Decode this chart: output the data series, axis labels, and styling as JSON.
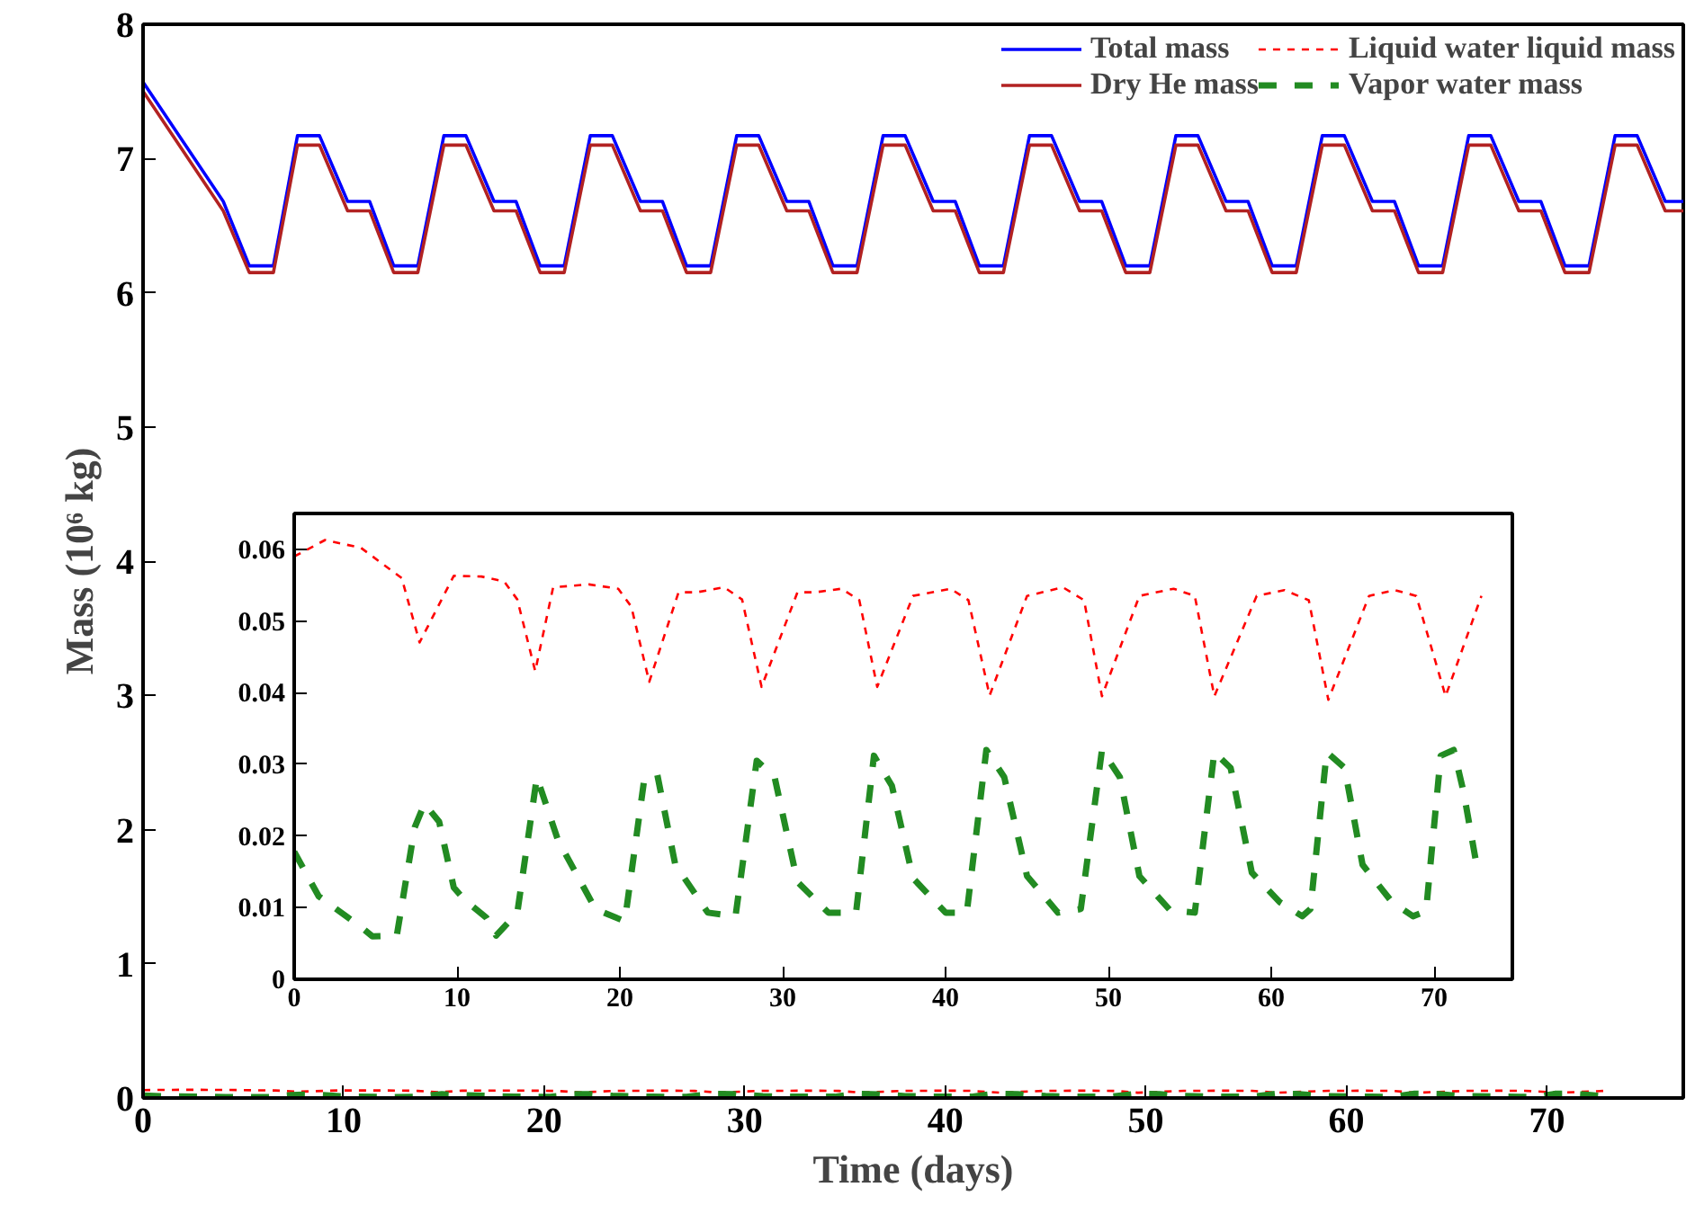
{
  "chart_data": [
    {
      "type": "line",
      "xlabel": "Time (days)",
      "ylabel": "Mass (10⁶ kg)",
      "xlim": [
        0,
        76.8
      ],
      "ylim": [
        0,
        8
      ],
      "xticks": [
        0,
        10,
        20,
        30,
        40,
        50,
        60,
        70
      ],
      "yticks": [
        0,
        1,
        2,
        3,
        4,
        5,
        6,
        7,
        8
      ],
      "legend": "top right",
      "series": [
        {
          "name": "Total mass",
          "color": "#0000ff",
          "line_style": "solid",
          "x": [
            0,
            4.0,
            5.3,
            6.5,
            7.7,
            8.8,
            10.2,
            11.3,
            12.5,
            13.7,
            15.0,
            16.1,
            17.5,
            18.6,
            19.8,
            21.0,
            22.3,
            23.4,
            24.8,
            25.9,
            27.1,
            28.3,
            29.6,
            30.7,
            32.1,
            33.2,
            34.4,
            35.6,
            36.9,
            38.0,
            39.4,
            40.5,
            41.7,
            42.9,
            44.2,
            45.3,
            46.7,
            47.8,
            49.0,
            50.2,
            51.5,
            52.6,
            54.0,
            55.1,
            56.3,
            57.5,
            58.8,
            59.9,
            61.3,
            62.4,
            63.6,
            64.8,
            66.1,
            67.2,
            68.6,
            69.7,
            70.9,
            72.1,
            73.4,
            74.5,
            75.9,
            76.8
          ],
          "values": [
            7.57,
            6.68,
            6.2,
            6.2,
            7.17,
            7.17,
            6.68,
            6.68,
            6.2,
            6.2,
            7.17,
            7.17,
            6.68,
            6.68,
            6.2,
            6.2,
            7.17,
            7.17,
            6.68,
            6.68,
            6.2,
            6.2,
            7.17,
            7.17,
            6.68,
            6.68,
            6.2,
            6.2,
            7.17,
            7.17,
            6.68,
            6.68,
            6.2,
            6.2,
            7.17,
            7.17,
            6.68,
            6.68,
            6.2,
            6.2,
            7.17,
            7.17,
            6.68,
            6.68,
            6.2,
            6.2,
            7.17,
            7.17,
            6.68,
            6.68,
            6.2,
            6.2,
            7.17,
            7.17,
            6.68,
            6.68,
            6.2,
            6.2,
            7.17,
            7.17,
            6.68,
            6.68
          ]
        },
        {
          "name": "Dry He mass",
          "color": "#b22222",
          "line_style": "solid",
          "x": [
            0,
            4.0,
            5.3,
            6.5,
            7.7,
            8.8,
            10.2,
            11.3,
            12.5,
            13.7,
            15.0,
            16.1,
            17.5,
            18.6,
            19.8,
            21.0,
            22.3,
            23.4,
            24.8,
            25.9,
            27.1,
            28.3,
            29.6,
            30.7,
            32.1,
            33.2,
            34.4,
            35.6,
            36.9,
            38.0,
            39.4,
            40.5,
            41.7,
            42.9,
            44.2,
            45.3,
            46.7,
            47.8,
            49.0,
            50.2,
            51.5,
            52.6,
            54.0,
            55.1,
            56.3,
            57.5,
            58.8,
            59.9,
            61.3,
            62.4,
            63.6,
            64.8,
            66.1,
            67.2,
            68.6,
            69.7,
            70.9,
            72.1,
            73.4,
            74.5,
            75.9,
            76.8
          ],
          "values": [
            7.5,
            6.61,
            6.15,
            6.15,
            7.1,
            7.1,
            6.61,
            6.61,
            6.15,
            6.15,
            7.1,
            7.1,
            6.61,
            6.61,
            6.15,
            6.15,
            7.1,
            7.1,
            6.61,
            6.61,
            6.15,
            6.15,
            7.1,
            7.1,
            6.61,
            6.61,
            6.15,
            6.15,
            7.1,
            7.1,
            6.61,
            6.61,
            6.15,
            6.15,
            7.1,
            7.1,
            6.61,
            6.61,
            6.15,
            6.15,
            7.1,
            7.1,
            6.61,
            6.61,
            6.15,
            6.15,
            7.1,
            7.1,
            6.61,
            6.61,
            6.15,
            6.15,
            7.1,
            7.1,
            6.61,
            6.61,
            6.15,
            6.15,
            7.1,
            7.1,
            6.61,
            6.61
          ]
        },
        {
          "name": "Liquid water liquid mass",
          "color": "#ff0000",
          "line_style": "dashed",
          "x": [
            0,
            1.9,
            4.1,
            6.6,
            7.7,
            9.8,
            11.5,
            12.9,
            13.7,
            14.8,
            15.9,
            18.1,
            19.9,
            20.7,
            21.8,
            23.6,
            24.7,
            26.4,
            27.5,
            28.7,
            30.9,
            32.0,
            33.6,
            34.7,
            35.8,
            38.0,
            40.3,
            41.4,
            42.7,
            45.0,
            47.2,
            48.5,
            49.6,
            51.9,
            54.0,
            55.3,
            56.5,
            59.1,
            60.8,
            62.3,
            63.5,
            66.0,
            67.6,
            68.9,
            70.7,
            72.9
          ],
          "values": [
            0.059,
            0.0613,
            0.0602,
            0.056,
            0.047,
            0.0563,
            0.0562,
            0.0555,
            0.053,
            0.043,
            0.0547,
            0.0551,
            0.0545,
            0.052,
            0.0415,
            0.054,
            0.054,
            0.0547,
            0.053,
            0.0408,
            0.054,
            0.054,
            0.0545,
            0.0529,
            0.0408,
            0.0535,
            0.0545,
            0.0529,
            0.0396,
            0.0535,
            0.0547,
            0.0529,
            0.0395,
            0.0535,
            0.0545,
            0.0535,
            0.0395,
            0.0535,
            0.0543,
            0.0529,
            0.039,
            0.0535,
            0.0543,
            0.0535,
            0.0395,
            0.0535
          ]
        },
        {
          "name": "Vapor water mass",
          "color": "#228b22",
          "line_style": "dashed",
          "x": [
            0,
            1.5,
            4.1,
            4.8,
            6.3,
            7.4,
            8.0,
            8.9,
            9.8,
            10.5,
            11.8,
            12.4,
            13.7,
            14.9,
            16.2,
            18.5,
            20.3,
            21.5,
            22.3,
            23.4,
            25.4,
            27.1,
            28.4,
            29.5,
            30.9,
            32.8,
            34.5,
            35.6,
            36.7,
            38.0,
            40.0,
            41.3,
            42.5,
            43.6,
            45.0,
            46.9,
            48.3,
            49.6,
            50.7,
            51.9,
            53.8,
            55.3,
            56.5,
            57.5,
            58.8,
            60.5,
            61.9,
            62.4,
            63.4,
            64.5,
            65.6,
            67.4,
            68.7,
            69.5,
            70.4,
            71.2,
            71.8,
            72.6
          ],
          "values": [
            0.0178,
            0.0116,
            0.0073,
            0.006,
            0.0061,
            0.0212,
            0.0245,
            0.022,
            0.0128,
            0.011,
            0.0086,
            0.0061,
            0.0093,
            0.0282,
            0.0194,
            0.0098,
            0.0081,
            0.028,
            0.0285,
            0.016,
            0.0093,
            0.0088,
            0.0305,
            0.0282,
            0.0136,
            0.0093,
            0.0093,
            0.0312,
            0.027,
            0.0141,
            0.0093,
            0.0093,
            0.032,
            0.0282,
            0.0144,
            0.0093,
            0.0098,
            0.032,
            0.0282,
            0.0144,
            0.0096,
            0.0093,
            0.0317,
            0.0295,
            0.0149,
            0.0108,
            0.0088,
            0.0098,
            0.0317,
            0.0295,
            0.016,
            0.0108,
            0.0088,
            0.0095,
            0.0312,
            0.032,
            0.0262,
            0.016
          ]
        }
      ]
    },
    {
      "type": "line",
      "xlim": [
        0,
        74.8
      ],
      "ylim": [
        0,
        0.065
      ],
      "xticks": [
        0,
        10,
        20,
        30,
        40,
        50,
        60,
        70
      ],
      "yticks": [
        0,
        0.01,
        0.02,
        0.03,
        0.04,
        0.05,
        0.06
      ],
      "series": [
        {
          "color": "#ff0000",
          "line_style": "dashed",
          "x": [
            0,
            1.9,
            4.1,
            6.6,
            7.7,
            9.8,
            11.5,
            12.9,
            13.7,
            14.8,
            15.9,
            18.1,
            19.9,
            20.7,
            21.8,
            23.6,
            24.7,
            26.4,
            27.5,
            28.7,
            30.9,
            32.0,
            33.6,
            34.7,
            35.8,
            38.0,
            40.3,
            41.4,
            42.7,
            45.0,
            47.2,
            48.5,
            49.6,
            51.9,
            54.0,
            55.3,
            56.5,
            59.1,
            60.8,
            62.3,
            63.5,
            66.0,
            67.6,
            68.9,
            70.7,
            72.9
          ],
          "values": [
            0.059,
            0.0613,
            0.0602,
            0.056,
            0.047,
            0.0563,
            0.0562,
            0.0555,
            0.053,
            0.043,
            0.0547,
            0.0551,
            0.0545,
            0.052,
            0.0415,
            0.054,
            0.054,
            0.0547,
            0.053,
            0.0408,
            0.054,
            0.054,
            0.0545,
            0.0529,
            0.0408,
            0.0535,
            0.0545,
            0.0529,
            0.0396,
            0.0535,
            0.0547,
            0.0529,
            0.0395,
            0.0535,
            0.0545,
            0.0535,
            0.0395,
            0.0535,
            0.0543,
            0.0529,
            0.039,
            0.0535,
            0.0543,
            0.0535,
            0.0395,
            0.0535
          ]
        },
        {
          "color": "#228b22",
          "line_style": "dashed",
          "x": [
            0,
            1.5,
            4.1,
            4.8,
            6.3,
            7.4,
            8.0,
            8.9,
            9.8,
            10.5,
            11.8,
            12.4,
            13.7,
            14.9,
            16.2,
            18.5,
            20.3,
            21.5,
            22.3,
            23.4,
            25.4,
            27.1,
            28.4,
            29.5,
            30.9,
            32.8,
            34.5,
            35.6,
            36.7,
            38.0,
            40.0,
            41.3,
            42.5,
            43.6,
            45.0,
            46.9,
            48.3,
            49.6,
            50.7,
            51.9,
            53.8,
            55.3,
            56.5,
            57.5,
            58.8,
            60.5,
            61.9,
            62.4,
            63.4,
            64.5,
            65.6,
            67.4,
            68.7,
            69.5,
            70.4,
            71.2,
            71.8,
            72.6
          ],
          "values": [
            0.0178,
            0.0116,
            0.0073,
            0.006,
            0.0061,
            0.0212,
            0.0245,
            0.022,
            0.0128,
            0.011,
            0.0086,
            0.0061,
            0.0093,
            0.0282,
            0.0194,
            0.0098,
            0.0081,
            0.028,
            0.0285,
            0.016,
            0.0093,
            0.0088,
            0.0305,
            0.0282,
            0.0136,
            0.0093,
            0.0093,
            0.0312,
            0.027,
            0.0141,
            0.0093,
            0.0093,
            0.032,
            0.0282,
            0.0144,
            0.0093,
            0.0098,
            0.032,
            0.0282,
            0.0144,
            0.0096,
            0.0093,
            0.0317,
            0.0295,
            0.0149,
            0.0108,
            0.0088,
            0.0098,
            0.0317,
            0.0295,
            0.016,
            0.0108,
            0.0088,
            0.0095,
            0.0312,
            0.032,
            0.0262,
            0.016
          ]
        }
      ]
    }
  ]
}
